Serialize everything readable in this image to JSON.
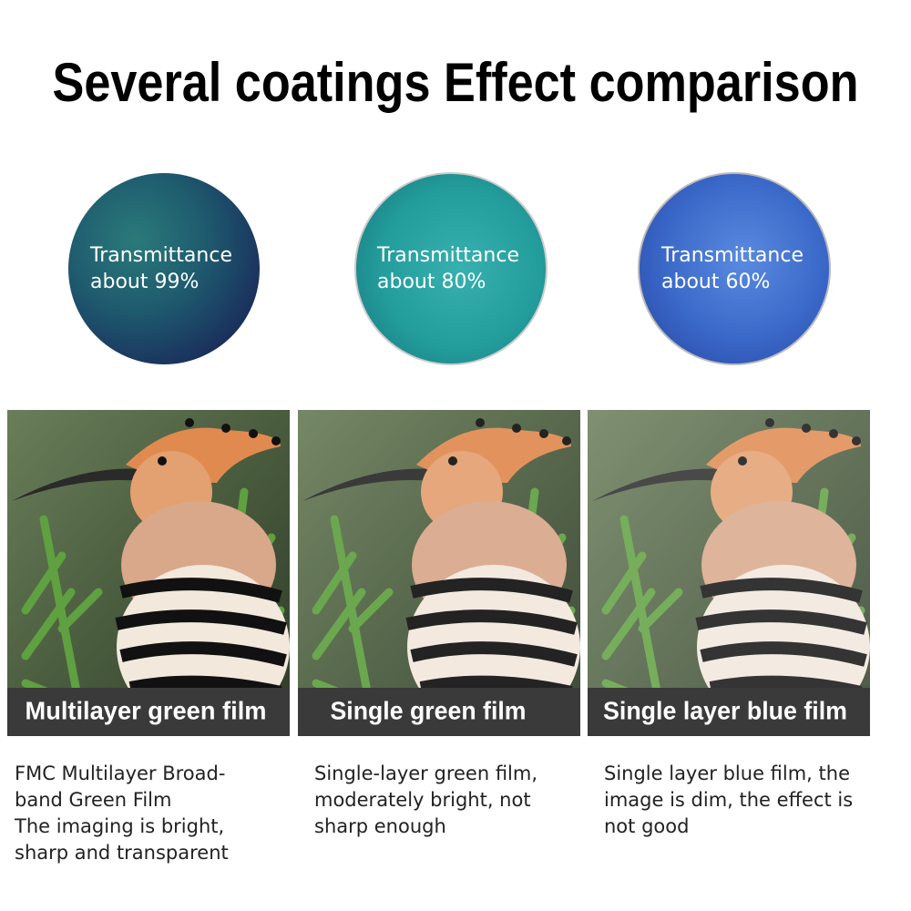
{
  "header": {
    "title": "Several coatings Effect comparison"
  },
  "lenses": [
    {
      "lines": [
        "Transmittance",
        "about 99%"
      ]
    },
    {
      "lines": [
        "Transmittance",
        "about 80%"
      ]
    },
    {
      "lines": [
        "Transmittance",
        "about 60%"
      ]
    }
  ],
  "panels": [
    {
      "caption": "Multilayer green film",
      "description": [
        "FMC Multilayer Broad-",
        "band Green Film",
        "The imaging is bright,",
        "sharp and transparent"
      ]
    },
    {
      "caption": "Single green film",
      "description": [
        "Single-layer green film,",
        "moderately bright, not",
        "sharp enough"
      ]
    },
    {
      "caption": "Single layer blue film",
      "description": [
        "Single layer blue film, the",
        "image is dim, the effect is",
        "not good"
      ]
    }
  ]
}
